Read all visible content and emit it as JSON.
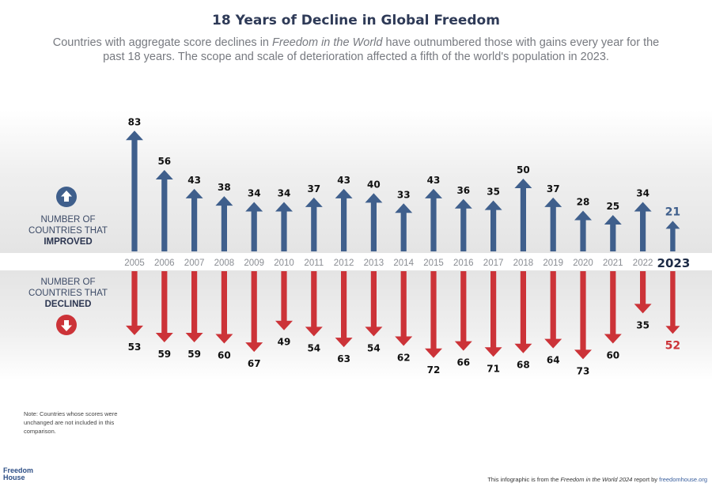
{
  "header": {
    "title": "18 Years of Decline in Global Freedom",
    "subtitle_pre": "Countries with aggregate score declines in ",
    "subtitle_italic": "Freedom in the World",
    "subtitle_post": " have outnumbered those with gains every year for the past 18 years. The scope and scale of deterioration affected a fifth of the world's population in 2023."
  },
  "labels": {
    "improved_line1": "NUMBER OF",
    "improved_line2": "COUNTRIES THAT",
    "improved_line3": "IMPROVED",
    "declined_line1": "NUMBER OF",
    "declined_line2": "COUNTRIES THAT",
    "declined_line3": "DECLINED"
  },
  "note": "Note: Countries whose scores were unchanged are not included in this comparison.",
  "logo": {
    "line1": "Freedom",
    "line2": "House"
  },
  "footer": {
    "pre": "This infographic is from the ",
    "italic": "Freedom in the World 2024",
    "mid": " report by ",
    "url": "freedomhouse.org"
  },
  "colors": {
    "improved": "#3f5f8c",
    "declined": "#cc3338",
    "improved_highlight": "#3f5f8c",
    "declined_highlight": "#cc3338"
  },
  "icons": {
    "improved": "up-arrow-circle-icon",
    "declined": "down-arrow-circle-icon"
  },
  "chart_data": {
    "type": "bar",
    "title": "18 Years of Decline in Global Freedom",
    "categories": [
      "2005",
      "2006",
      "2007",
      "2008",
      "2009",
      "2010",
      "2011",
      "2012",
      "2013",
      "2014",
      "2015",
      "2016",
      "2017",
      "2018",
      "2019",
      "2020",
      "2021",
      "2022",
      "2023"
    ],
    "series": [
      {
        "name": "NUMBER OF COUNTRIES THAT IMPROVED",
        "direction": "up",
        "values": [
          83,
          56,
          43,
          38,
          34,
          34,
          37,
          43,
          40,
          33,
          43,
          36,
          35,
          50,
          37,
          28,
          25,
          34,
          21
        ]
      },
      {
        "name": "NUMBER OF COUNTRIES THAT DECLINED",
        "direction": "down",
        "values": [
          53,
          59,
          59,
          60,
          67,
          49,
          54,
          63,
          54,
          62,
          72,
          66,
          71,
          68,
          64,
          73,
          60,
          35,
          52
        ]
      }
    ],
    "highlight_category": "2023",
    "grid": false,
    "legend": "left"
  }
}
